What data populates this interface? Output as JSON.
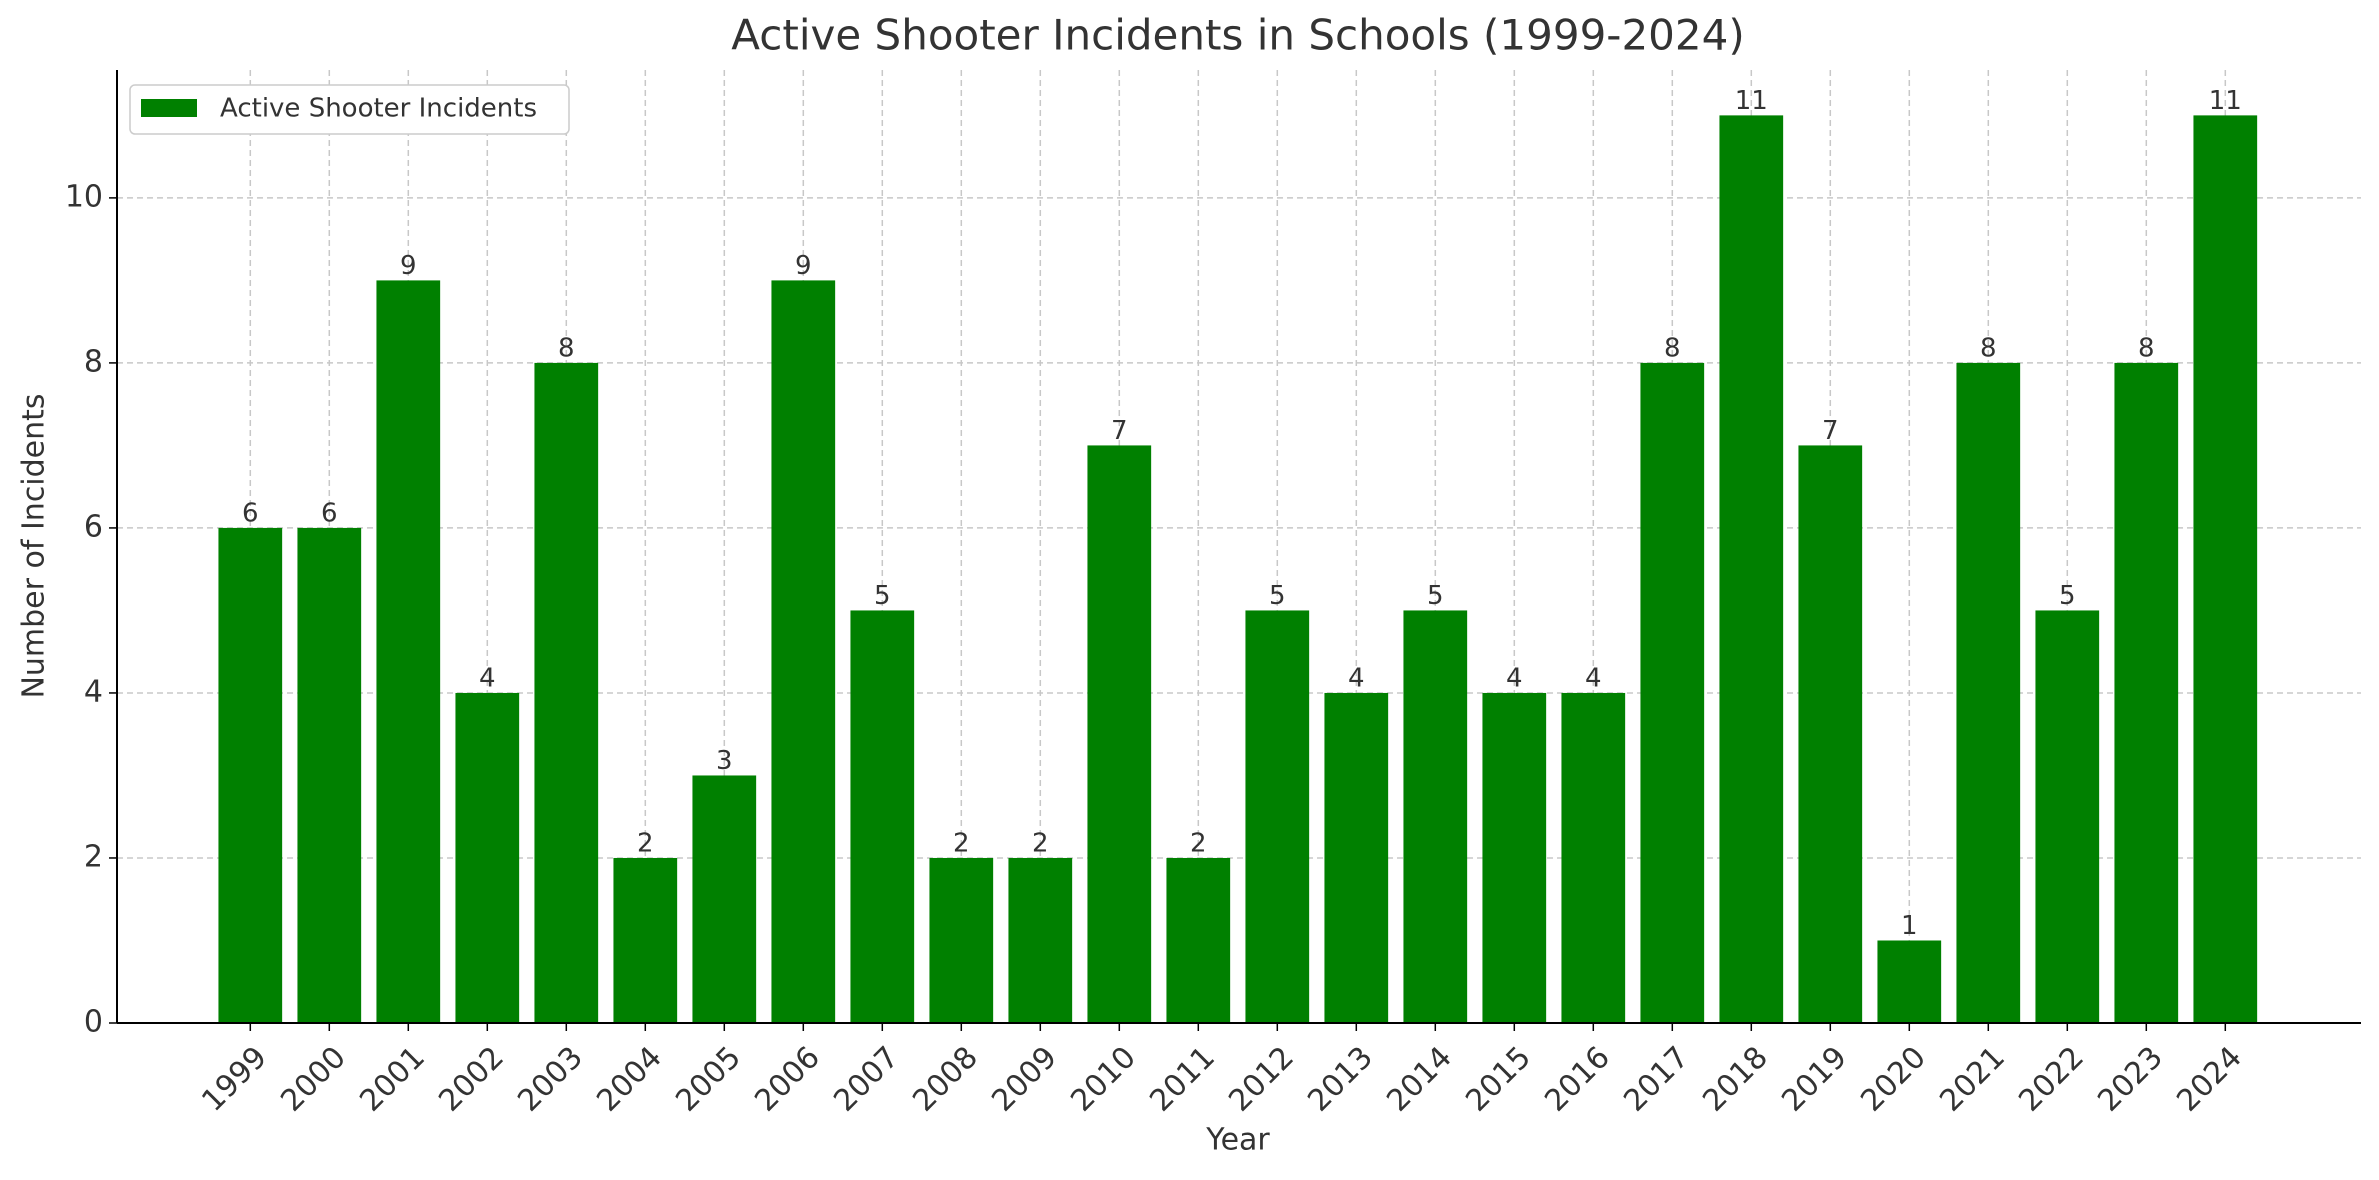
{
  "chart_data": {
    "type": "bar",
    "title": "Active Shooter Incidents in Schools (1999-2024)",
    "x_label": "Year",
    "y_label": "Number of Incidents",
    "categories": [
      "1999",
      "2000",
      "2001",
      "2002",
      "2003",
      "2004",
      "2005",
      "2006",
      "2007",
      "2008",
      "2009",
      "2010",
      "2011",
      "2012",
      "2013",
      "2014",
      "2015",
      "2016",
      "2017",
      "2018",
      "2019",
      "2020",
      "2021",
      "2022",
      "2023",
      "2024"
    ],
    "series": [
      {
        "name": "Active Shooter Incidents",
        "color": "#008000",
        "values": [
          6,
          6,
          9,
          4,
          8,
          2,
          3,
          9,
          5,
          2,
          2,
          7,
          2,
          5,
          4,
          5,
          4,
          4,
          8,
          11,
          7,
          1,
          8,
          5,
          8,
          11
        ]
      }
    ],
    "ylim": [
      0,
      11.55
    ],
    "yticks": [
      0,
      2,
      4,
      6,
      8,
      10
    ],
    "grid": true,
    "legend": "upper left"
  }
}
